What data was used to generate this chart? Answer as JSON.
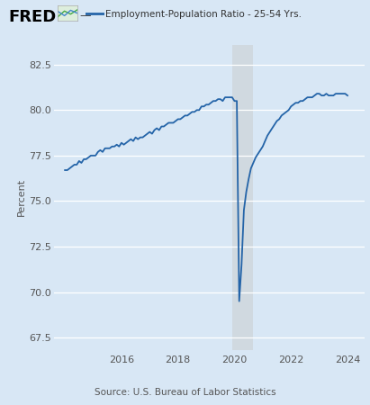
{
  "title_legend": "Employment-Population Ratio - 25-54 Yrs.",
  "ylabel": "Percent",
  "source": "Source: U.S. Bureau of Labor Statistics",
  "line_color": "#2464a8",
  "background_color": "#d8e7f5",
  "plot_bg_color": "#d8e7f5",
  "ylim": [
    66.8,
    83.6
  ],
  "yticks": [
    67.5,
    70.0,
    72.5,
    75.0,
    77.5,
    80.0,
    82.5
  ],
  "shade_xmin": 2019.92,
  "shade_xmax": 2020.67,
  "shade_color": "#c8c8c8",
  "shade_alpha": 0.45,
  "xlim_left": 2013.6,
  "xlim_right": 2024.6,
  "xticks": [
    2016,
    2018,
    2020,
    2022,
    2024
  ],
  "data": {
    "dates": [
      2014.0,
      2014.083,
      2014.167,
      2014.25,
      2014.333,
      2014.417,
      2014.5,
      2014.583,
      2014.667,
      2014.75,
      2014.833,
      2014.917,
      2015.0,
      2015.083,
      2015.167,
      2015.25,
      2015.333,
      2015.417,
      2015.5,
      2015.583,
      2015.667,
      2015.75,
      2015.833,
      2015.917,
      2016.0,
      2016.083,
      2016.167,
      2016.25,
      2016.333,
      2016.417,
      2016.5,
      2016.583,
      2016.667,
      2016.75,
      2016.833,
      2016.917,
      2017.0,
      2017.083,
      2017.167,
      2017.25,
      2017.333,
      2017.417,
      2017.5,
      2017.583,
      2017.667,
      2017.75,
      2017.833,
      2017.917,
      2018.0,
      2018.083,
      2018.167,
      2018.25,
      2018.333,
      2018.417,
      2018.5,
      2018.583,
      2018.667,
      2018.75,
      2018.833,
      2018.917,
      2019.0,
      2019.083,
      2019.167,
      2019.25,
      2019.333,
      2019.417,
      2019.5,
      2019.583,
      2019.667,
      2019.75,
      2019.833,
      2019.917,
      2020.0,
      2020.083,
      2020.167,
      2020.25,
      2020.333,
      2020.417,
      2020.5,
      2020.583,
      2020.667,
      2020.75,
      2020.833,
      2020.917,
      2021.0,
      2021.083,
      2021.167,
      2021.25,
      2021.333,
      2021.417,
      2021.5,
      2021.583,
      2021.667,
      2021.75,
      2021.833,
      2021.917,
      2022.0,
      2022.083,
      2022.167,
      2022.25,
      2022.333,
      2022.417,
      2022.5,
      2022.583,
      2022.667,
      2022.75,
      2022.833,
      2022.917,
      2023.0,
      2023.083,
      2023.167,
      2023.25,
      2023.333,
      2023.417,
      2023.5,
      2023.583,
      2023.667,
      2023.75,
      2023.833,
      2023.917,
      2024.0
    ],
    "values": [
      76.7,
      76.7,
      76.8,
      76.9,
      77.0,
      77.0,
      77.2,
      77.1,
      77.3,
      77.3,
      77.4,
      77.5,
      77.5,
      77.5,
      77.7,
      77.8,
      77.7,
      77.9,
      77.9,
      77.9,
      78.0,
      78.0,
      78.1,
      78.0,
      78.2,
      78.1,
      78.2,
      78.3,
      78.4,
      78.3,
      78.5,
      78.4,
      78.5,
      78.5,
      78.6,
      78.7,
      78.8,
      78.7,
      78.9,
      79.0,
      78.9,
      79.1,
      79.1,
      79.2,
      79.3,
      79.3,
      79.3,
      79.4,
      79.5,
      79.5,
      79.6,
      79.7,
      79.7,
      79.8,
      79.9,
      79.9,
      80.0,
      80.0,
      80.2,
      80.2,
      80.3,
      80.3,
      80.4,
      80.5,
      80.5,
      80.6,
      80.6,
      80.5,
      80.7,
      80.7,
      80.7,
      80.7,
      80.5,
      80.5,
      69.5,
      71.5,
      74.5,
      75.5,
      76.2,
      76.8,
      77.1,
      77.4,
      77.6,
      77.8,
      78.0,
      78.3,
      78.6,
      78.8,
      79.0,
      79.2,
      79.4,
      79.5,
      79.7,
      79.8,
      79.9,
      80.0,
      80.2,
      80.3,
      80.4,
      80.4,
      80.5,
      80.5,
      80.6,
      80.7,
      80.7,
      80.7,
      80.8,
      80.9,
      80.9,
      80.8,
      80.8,
      80.9,
      80.8,
      80.8,
      80.8,
      80.9,
      80.9,
      80.9,
      80.9,
      80.9,
      80.8
    ]
  }
}
